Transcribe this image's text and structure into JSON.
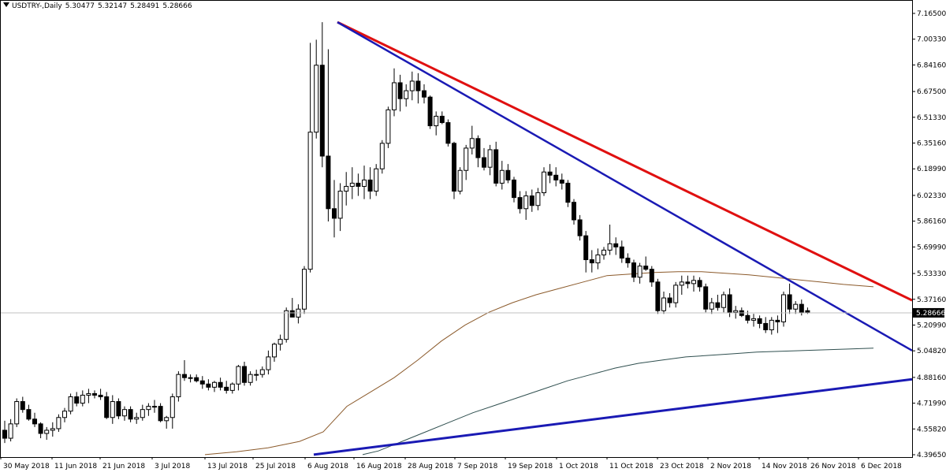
{
  "header": {
    "symbol": "USDTRY-,Daily",
    "open": "5.30477",
    "high": "5.32147",
    "low": "5.28491",
    "close": "5.28666"
  },
  "chart_data": {
    "type": "candlestick",
    "symbol": "USDTRY",
    "timeframe": "Daily",
    "price_axis_ticks": [
      "7.16500",
      "7.00330",
      "6.84160",
      "6.67500",
      "6.51330",
      "6.35160",
      "6.18990",
      "6.02330",
      "5.86160",
      "5.69990",
      "5.53330",
      "5.37160",
      "5.20990",
      "5.04820",
      "4.88160",
      "4.71990",
      "4.55820",
      "4.39650"
    ],
    "y_range": [
      4.3965,
      7.165
    ],
    "current_price_label": "5.28666",
    "current_price": 5.28666,
    "date_axis_ticks": [
      "30 May 2018",
      "11 Jun 2018",
      "21 Jun 2018",
      "3 Jul 2018",
      "13 Jul 2018",
      "25 Jul 2018",
      "6 Aug 2018",
      "16 Aug 2018",
      "28 Aug 2018",
      "7 Sep 2018",
      "19 Sep 2018",
      "1 Oct 2018",
      "11 Oct 2018",
      "23 Oct 2018",
      "2 Nov 2018",
      "14 Nov 2018",
      "26 Nov 2018",
      "6 Dec 2018"
    ],
    "ohlc": [
      [
        4.55,
        4.61,
        4.47,
        4.5
      ],
      [
        4.5,
        4.62,
        4.48,
        4.59
      ],
      [
        4.59,
        4.75,
        4.57,
        4.73
      ],
      [
        4.73,
        4.76,
        4.66,
        4.68
      ],
      [
        4.68,
        4.71,
        4.61,
        4.62
      ],
      [
        4.62,
        4.66,
        4.57,
        4.59
      ],
      [
        4.59,
        4.6,
        4.5,
        4.53
      ],
      [
        4.53,
        4.57,
        4.49,
        4.55
      ],
      [
        4.55,
        4.6,
        4.51,
        4.56
      ],
      [
        4.56,
        4.65,
        4.54,
        4.63
      ],
      [
        4.63,
        4.69,
        4.6,
        4.67
      ],
      [
        4.67,
        4.78,
        4.65,
        4.76
      ],
      [
        4.76,
        4.79,
        4.7,
        4.72
      ],
      [
        4.72,
        4.8,
        4.7,
        4.77
      ],
      [
        4.77,
        4.81,
        4.72,
        4.78
      ],
      [
        4.78,
        4.8,
        4.75,
        4.77
      ],
      [
        4.77,
        4.81,
        4.74,
        4.76
      ],
      [
        4.76,
        4.79,
        4.62,
        4.63
      ],
      [
        4.63,
        4.77,
        4.59,
        4.73
      ],
      [
        4.73,
        4.75,
        4.62,
        4.64
      ],
      [
        4.64,
        4.7,
        4.61,
        4.68
      ],
      [
        4.68,
        4.7,
        4.6,
        4.62
      ],
      [
        4.62,
        4.66,
        4.59,
        4.63
      ],
      [
        4.63,
        4.71,
        4.61,
        4.68
      ],
      [
        4.68,
        4.72,
        4.64,
        4.7
      ],
      [
        4.7,
        4.74,
        4.66,
        4.7
      ],
      [
        4.7,
        4.72,
        4.6,
        4.61
      ],
      [
        4.61,
        4.64,
        4.56,
        4.63
      ],
      [
        4.63,
        4.78,
        4.56,
        4.76
      ],
      [
        4.76,
        4.92,
        4.73,
        4.9
      ],
      [
        4.9,
        4.99,
        4.86,
        4.88
      ],
      [
        4.88,
        4.9,
        4.85,
        4.88
      ],
      [
        4.88,
        4.9,
        4.85,
        4.86
      ],
      [
        4.86,
        4.89,
        4.81,
        4.84
      ],
      [
        4.84,
        4.87,
        4.8,
        4.82
      ],
      [
        4.82,
        4.86,
        4.79,
        4.85
      ],
      [
        4.85,
        4.88,
        4.8,
        4.82
      ],
      [
        4.82,
        4.86,
        4.78,
        4.8
      ],
      [
        4.8,
        4.85,
        4.78,
        4.84
      ],
      [
        4.84,
        4.96,
        4.8,
        4.95
      ],
      [
        4.95,
        4.98,
        4.83,
        4.85
      ],
      [
        4.85,
        4.92,
        4.83,
        4.9
      ],
      [
        4.9,
        4.93,
        4.86,
        4.9
      ],
      [
        4.9,
        4.95,
        4.88,
        4.93
      ],
      [
        4.93,
        5.05,
        4.9,
        5.01
      ],
      [
        5.01,
        5.1,
        4.98,
        5.09
      ],
      [
        5.09,
        5.15,
        5.05,
        5.12
      ],
      [
        5.12,
        5.32,
        5.1,
        5.3
      ],
      [
        5.3,
        5.38,
        5.27,
        5.26
      ],
      [
        5.26,
        5.34,
        5.22,
        5.31
      ],
      [
        5.31,
        5.58,
        5.28,
        5.56
      ],
      [
        5.56,
        6.98,
        5.54,
        6.42
      ],
      [
        6.42,
        7.0,
        6.38,
        6.84
      ],
      [
        6.84,
        7.11,
        6.2,
        6.27
      ],
      [
        6.27,
        6.94,
        5.86,
        5.94
      ],
      [
        5.94,
        6.12,
        5.76,
        5.88
      ],
      [
        5.88,
        6.1,
        5.8,
        6.05
      ],
      [
        6.05,
        6.17,
        5.96,
        6.08
      ],
      [
        6.08,
        6.2,
        6.0,
        6.1
      ],
      [
        6.1,
        6.16,
        6.02,
        6.08
      ],
      [
        6.08,
        6.21,
        6.0,
        6.12
      ],
      [
        6.12,
        6.2,
        6.0,
        6.05
      ],
      [
        6.05,
        6.22,
        6.02,
        6.19
      ],
      [
        6.19,
        6.37,
        6.16,
        6.35
      ],
      [
        6.35,
        6.58,
        6.32,
        6.56
      ],
      [
        6.56,
        6.82,
        6.52,
        6.73
      ],
      [
        6.73,
        6.78,
        6.55,
        6.63
      ],
      [
        6.63,
        6.72,
        6.58,
        6.68
      ],
      [
        6.68,
        6.8,
        6.62,
        6.74
      ],
      [
        6.74,
        6.79,
        6.6,
        6.68
      ],
      [
        6.68,
        6.72,
        6.6,
        6.64
      ],
      [
        6.64,
        6.65,
        6.44,
        6.46
      ],
      [
        6.46,
        6.55,
        6.4,
        6.52
      ],
      [
        6.52,
        6.55,
        6.47,
        6.48
      ],
      [
        6.48,
        6.5,
        6.33,
        6.35
      ],
      [
        6.35,
        6.36,
        6.0,
        6.05
      ],
      [
        6.05,
        6.2,
        6.03,
        6.18
      ],
      [
        6.18,
        6.34,
        6.12,
        6.32
      ],
      [
        6.32,
        6.46,
        6.28,
        6.38
      ],
      [
        6.38,
        6.4,
        6.2,
        6.26
      ],
      [
        6.26,
        6.32,
        6.18,
        6.2
      ],
      [
        6.2,
        6.34,
        6.15,
        6.31
      ],
      [
        6.31,
        6.36,
        6.08,
        6.1
      ],
      [
        6.1,
        6.24,
        6.06,
        6.18
      ],
      [
        6.18,
        6.22,
        6.1,
        6.12
      ],
      [
        6.12,
        6.14,
        5.98,
        6.01
      ],
      [
        6.01,
        6.05,
        5.91,
        5.94
      ],
      [
        5.94,
        6.05,
        5.87,
        6.02
      ],
      [
        6.02,
        6.06,
        5.92,
        5.96
      ],
      [
        5.96,
        6.07,
        5.93,
        6.04
      ],
      [
        6.04,
        6.2,
        6.02,
        6.17
      ],
      [
        6.17,
        6.22,
        6.1,
        6.15
      ],
      [
        6.15,
        6.2,
        6.08,
        6.12
      ],
      [
        6.12,
        6.16,
        6.06,
        6.1
      ],
      [
        6.1,
        6.12,
        5.95,
        5.98
      ],
      [
        5.98,
        6.0,
        5.84,
        5.87
      ],
      [
        5.87,
        5.9,
        5.74,
        5.77
      ],
      [
        5.77,
        5.8,
        5.54,
        5.62
      ],
      [
        5.62,
        5.68,
        5.54,
        5.6
      ],
      [
        5.6,
        5.69,
        5.56,
        5.65
      ],
      [
        5.65,
        5.7,
        5.62,
        5.68
      ],
      [
        5.68,
        5.84,
        5.65,
        5.72
      ],
      [
        5.72,
        5.76,
        5.65,
        5.7
      ],
      [
        5.7,
        5.74,
        5.6,
        5.63
      ],
      [
        5.63,
        5.66,
        5.57,
        5.6
      ],
      [
        5.6,
        5.62,
        5.48,
        5.51
      ],
      [
        5.51,
        5.6,
        5.47,
        5.58
      ],
      [
        5.58,
        5.64,
        5.55,
        5.56
      ],
      [
        5.56,
        5.58,
        5.45,
        5.48
      ],
      [
        5.48,
        5.5,
        5.28,
        5.3
      ],
      [
        5.3,
        5.42,
        5.28,
        5.38
      ],
      [
        5.38,
        5.41,
        5.32,
        5.35
      ],
      [
        5.35,
        5.48,
        5.32,
        5.46
      ],
      [
        5.46,
        5.52,
        5.4,
        5.48
      ],
      [
        5.48,
        5.52,
        5.44,
        5.47
      ],
      [
        5.47,
        5.52,
        5.42,
        5.49
      ],
      [
        5.49,
        5.51,
        5.42,
        5.45
      ],
      [
        5.45,
        5.47,
        5.29,
        5.31
      ],
      [
        5.31,
        5.38,
        5.28,
        5.35
      ],
      [
        5.35,
        5.4,
        5.3,
        5.32
      ],
      [
        5.32,
        5.42,
        5.29,
        5.4
      ],
      [
        5.4,
        5.44,
        5.26,
        5.29
      ],
      [
        5.29,
        5.33,
        5.25,
        5.3
      ],
      [
        5.3,
        5.32,
        5.26,
        5.27
      ],
      [
        5.27,
        5.3,
        5.22,
        5.24
      ],
      [
        5.24,
        5.28,
        5.2,
        5.25
      ],
      [
        5.25,
        5.27,
        5.19,
        5.22
      ],
      [
        5.22,
        5.26,
        5.16,
        5.18
      ],
      [
        5.18,
        5.26,
        5.15,
        5.24
      ],
      [
        5.24,
        5.27,
        5.16,
        5.23
      ],
      [
        5.23,
        5.42,
        5.2,
        5.4
      ],
      [
        5.4,
        5.47,
        5.28,
        5.31
      ],
      [
        5.31,
        5.36,
        5.28,
        5.34
      ],
      [
        5.34,
        5.37,
        5.27,
        5.29
      ],
      [
        5.3,
        5.32,
        5.28,
        5.29
      ]
    ],
    "overlays": [
      {
        "name": "",
        "color": "#e01010",
        "kind": "trendline"
      },
      {
        "name": "",
        "color": "#1a1ab4",
        "kind": "trendline"
      },
      {
        "name": "",
        "color": "#1a1ab4",
        "kind": "trendline"
      },
      {
        "name": "",
        "color": "#8b5a2b",
        "kind": "moving-average"
      },
      {
        "name": "",
        "color": "#2f4f4f",
        "kind": "moving-average"
      }
    ],
    "colors": {
      "bull_body": "#ffffff",
      "bear_body": "#000000",
      "wick": "#000000",
      "price_marker": "#c0c0c0"
    },
    "grid": false
  }
}
